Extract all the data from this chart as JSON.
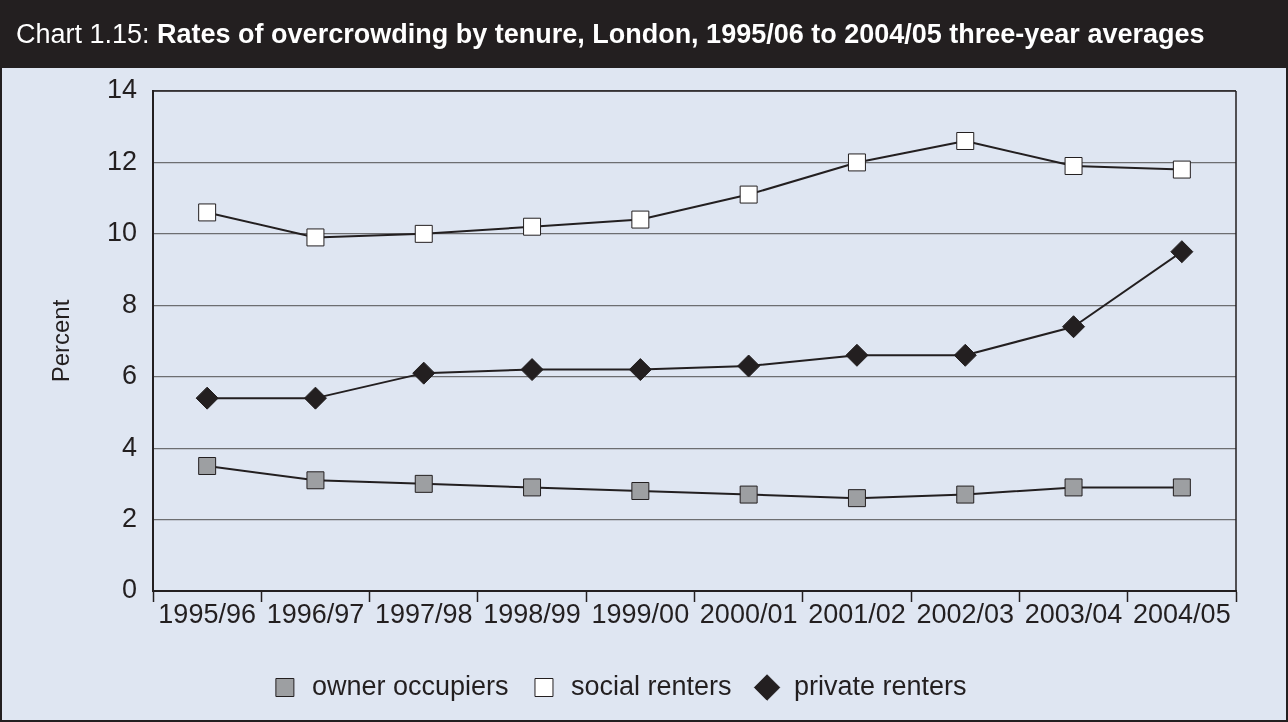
{
  "chart_data": {
    "type": "line",
    "title": "Chart 1.15: Rates of overcrowding by tenure, London, 1995/06 to 2004/05 three-year averages",
    "ylabel": "Percent",
    "categories": [
      "1995/96",
      "1996/97",
      "1997/98",
      "1998/99",
      "1999/00",
      "2000/01",
      "2001/02",
      "2002/03",
      "2003/04",
      "2004/05"
    ],
    "series": [
      {
        "name": "owner occupiers",
        "color": "#9d9fa2",
        "marker": "square",
        "values": [
          3.5,
          3.1,
          3.0,
          2.9,
          2.8,
          2.7,
          2.6,
          2.7,
          2.9,
          2.9
        ]
      },
      {
        "name": "social renters",
        "color": "#ffffff",
        "marker": "square",
        "values": [
          10.6,
          9.9,
          10.0,
          10.2,
          10.4,
          11.1,
          12.0,
          12.6,
          11.9,
          11.8
        ]
      },
      {
        "name": "private renters",
        "color": "#231f20",
        "marker": "diamond",
        "values": [
          5.4,
          5.4,
          6.1,
          6.2,
          6.2,
          6.3,
          6.6,
          6.6,
          7.4,
          9.5
        ]
      }
    ],
    "ylim": [
      0,
      14
    ],
    "yticks": [
      0,
      2,
      4,
      6,
      8,
      10,
      12,
      14
    ],
    "grid": "y",
    "legend": "bottom"
  }
}
